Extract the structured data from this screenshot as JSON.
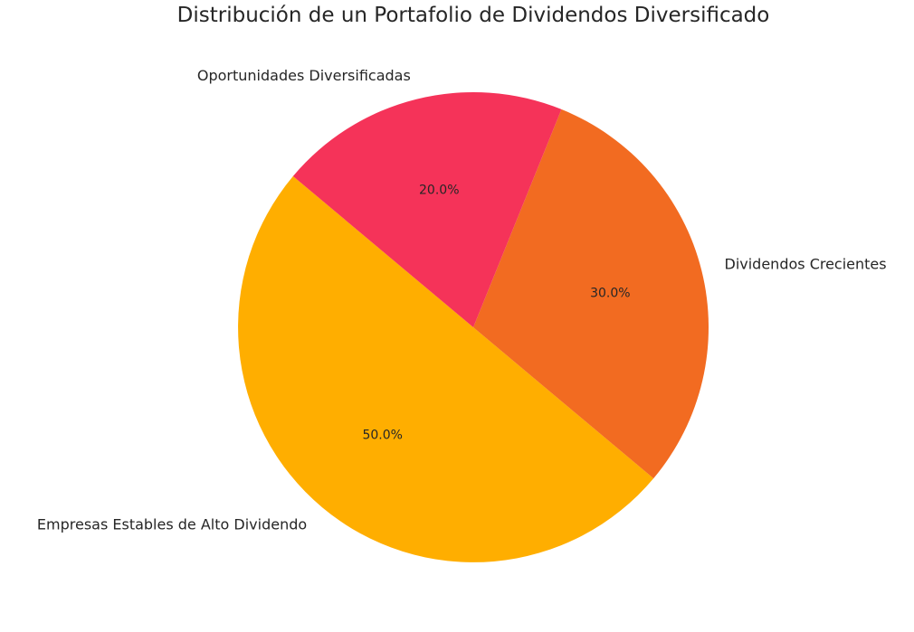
{
  "chart_data": {
    "type": "pie",
    "title": "Distribución de un Portafolio de Dividendos Diversificado",
    "slices": [
      {
        "label": "Empresas Estables de Alto Dividendo",
        "value": 50.0,
        "pct_label": "50.0%",
        "color": "#FFAE00"
      },
      {
        "label": "Dividendos Crecientes",
        "value": 30.0,
        "pct_label": "30.0%",
        "color": "#F26B21"
      },
      {
        "label": "Oportunidades Diversificadas",
        "value": 20.0,
        "pct_label": "20.0%",
        "color": "#F53359"
      }
    ],
    "start_angle": 140,
    "direction": "counterclockwise"
  }
}
